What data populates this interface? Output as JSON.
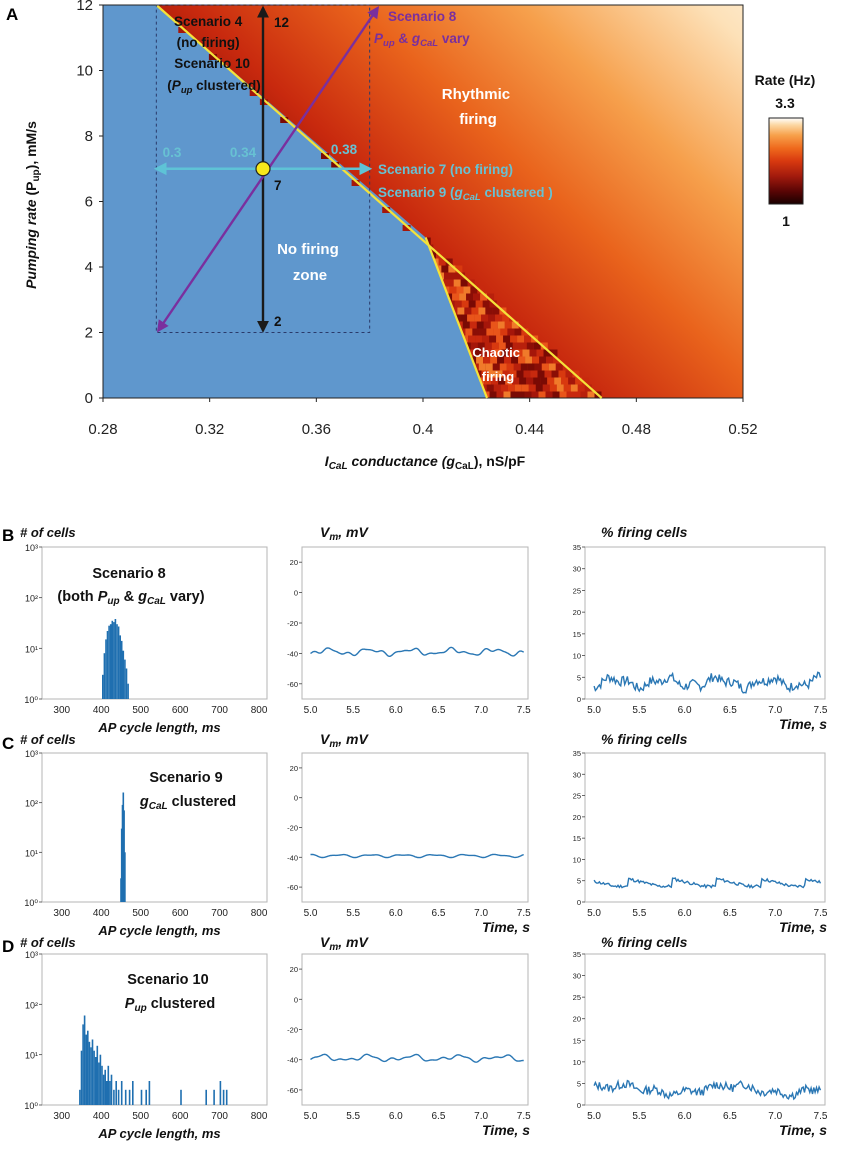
{
  "colors": {
    "no_firing_blue": "#5f97cd",
    "arrow_black": "#1a1a1a",
    "arrow_purple": "#7a2f9e",
    "arrow_cyan": "#5ec3d6",
    "label_purple": "#7a2f9e",
    "label_cyan": "#67c1d3",
    "boundary_yellow": "#f4e23a",
    "trace_blue": "#2a77b4",
    "hist_blue": "#1f6fb0",
    "rate_colormap": [
      "#1a0000",
      "#5a0505",
      "#a11a0d",
      "#d8390f",
      "#ef6a1d",
      "#f7a14b",
      "#fcd8a4",
      "#ffffff"
    ]
  },
  "panel_a": {
    "letter": "A",
    "xlabel": "I_CaL conductance (g_CaL), nS/pF",
    "ylabel": "Pumping rate (P_up), mM/s",
    "xticks": [
      "0.28",
      "0.32",
      "0.36",
      "0.4",
      "0.44",
      "0.48",
      "0.52"
    ],
    "yticks": [
      "0",
      "2",
      "4",
      "6",
      "8",
      "10",
      "12"
    ],
    "colorbar": {
      "title": "Rate (Hz)",
      "max_label": "3.3",
      "min_label": "1"
    },
    "region_rhythmic": [
      "Rhythmic",
      "firing"
    ],
    "region_no_firing": [
      "No firing",
      "zone"
    ],
    "region_chaotic": [
      "Chaotic",
      "firing"
    ],
    "scenario_4_10": [
      "Scenario 4",
      "(no firing)",
      "Scenario 10",
      "(Pup clustered)"
    ],
    "scenario_8": [
      "Scenario 8",
      "Pup & gCaL vary"
    ],
    "scenario_7_9": [
      "Scenario 7 (no firing)",
      "Scenario 9 (gCaL clustered )"
    ],
    "cyan_values": [
      "0.3",
      "0.34",
      "0.38"
    ],
    "black_values": [
      "12",
      "7",
      "2"
    ]
  },
  "chart_data": [
    {
      "type": "heatmap",
      "id": "A",
      "title": "",
      "xlabel": "I_CaL conductance (g_CaL), nS/pF",
      "ylabel": "Pumping rate (P_up), mM/s",
      "xlim": [
        0.28,
        0.52
      ],
      "ylim": [
        0,
        12
      ],
      "colorbar": {
        "label": "Rate (Hz)",
        "range": [
          1,
          3.3
        ]
      },
      "boundary": {
        "upper_line": [
          [
            0.3,
            12
          ],
          [
            0.467,
            0
          ]
        ],
        "lower_branch": [
          [
            0.401,
            4.9
          ],
          [
            0.424,
            0
          ]
        ]
      },
      "center_point": [
        0.34,
        7
      ],
      "dashed_box": {
        "x": [
          0.3,
          0.38
        ],
        "y": [
          2,
          12
        ]
      }
    },
    {
      "type": "bar",
      "id": "B1",
      "label": "# of cells",
      "xlabel": "AP cycle length, ms",
      "yscale": "log",
      "xlim": [
        250,
        820
      ],
      "ylim": [
        1,
        1000
      ],
      "xticks": [
        "300",
        "400",
        "500",
        "600",
        "700",
        "800"
      ],
      "ytick_labels": [
        "10⁰",
        "10¹",
        "10²",
        "10³"
      ],
      "annotation": [
        "Scenario 8",
        "(both Pup & gCaL vary)"
      ],
      "bins": [
        [
          402,
          3
        ],
        [
          406,
          8
        ],
        [
          410,
          15
        ],
        [
          414,
          22
        ],
        [
          418,
          28
        ],
        [
          422,
          30
        ],
        [
          426,
          35
        ],
        [
          430,
          33
        ],
        [
          434,
          38
        ],
        [
          438,
          30
        ],
        [
          442,
          27
        ],
        [
          446,
          18
        ],
        [
          450,
          14
        ],
        [
          454,
          9
        ],
        [
          458,
          6
        ],
        [
          462,
          4
        ],
        [
          466,
          2
        ]
      ]
    },
    {
      "type": "line",
      "id": "B2",
      "label": "Vm, mV",
      "xlabel": "",
      "xlim": [
        4.9,
        7.55
      ],
      "ylim": [
        -70,
        30
      ],
      "xticks": [
        "5.0",
        "5.5",
        "6.0",
        "6.5",
        "7.0",
        "7.5"
      ],
      "yticks": [
        "20",
        "0",
        "-20",
        "-40",
        "-60"
      ],
      "shape": {
        "base": -39,
        "waves": [
          [
            1.6,
            13
          ],
          [
            0.9,
            31
          ],
          [
            0.5,
            47
          ]
        ],
        "seed": 3
      }
    },
    {
      "type": "line",
      "id": "B3",
      "label": "% firing cells",
      "xlabel": "Time, s",
      "xlim": [
        4.9,
        7.55
      ],
      "ylim": [
        0,
        35
      ],
      "xticks": [
        "5.0",
        "5.5",
        "6.0",
        "6.5",
        "7.0",
        "7.5"
      ],
      "yticks": [
        "0",
        "5",
        "10",
        "15",
        "20",
        "25",
        "30",
        "35"
      ],
      "shape": {
        "base": 3.8,
        "waves": [
          [
            0.9,
            11
          ],
          [
            0.5,
            27
          ]
        ],
        "noise": 1.1,
        "seed": 7
      }
    },
    {
      "type": "bar",
      "id": "C1",
      "label": "# of cells",
      "xlabel": "AP cycle length, ms",
      "yscale": "log",
      "xlim": [
        250,
        820
      ],
      "ylim": [
        1,
        1000
      ],
      "xticks": [
        "300",
        "400",
        "500",
        "600",
        "700",
        "800"
      ],
      "ytick_labels": [
        "10⁰",
        "10¹",
        "10²",
        "10³"
      ],
      "annotation": [
        "Scenario 9",
        "gCaL clustered"
      ],
      "bins": [
        [
          448,
          3
        ],
        [
          450,
          30
        ],
        [
          452,
          90
        ],
        [
          454,
          160
        ],
        [
          456,
          70
        ],
        [
          458,
          10
        ]
      ]
    },
    {
      "type": "line",
      "id": "C2",
      "label": "Vm, mV",
      "xlabel": "Time, s",
      "xlim": [
        4.9,
        7.55
      ],
      "ylim": [
        -70,
        30
      ],
      "xticks": [
        "5.0",
        "5.5",
        "6.0",
        "6.5",
        "7.0",
        "7.5"
      ],
      "yticks": [
        "20",
        "0",
        "-20",
        "-40",
        "-60"
      ],
      "shape": {
        "base": -39,
        "waves": [
          [
            0.8,
            17
          ],
          [
            0.4,
            33
          ]
        ],
        "seed": 5
      }
    },
    {
      "type": "line",
      "id": "C3",
      "label": "% firing cells",
      "xlabel": "Time, s",
      "xlim": [
        4.9,
        7.55
      ],
      "ylim": [
        0,
        35
      ],
      "xticks": [
        "5.0",
        "5.5",
        "6.0",
        "6.5",
        "7.0",
        "7.5"
      ],
      "yticks": [
        "0",
        "5",
        "10",
        "15",
        "20",
        "25",
        "30",
        "35"
      ],
      "shape": {
        "base": 4.3,
        "sawtooth": {
          "period": 0.49,
          "amp": 1.8
        },
        "noise": 0.35,
        "seed": 11
      }
    },
    {
      "type": "bar",
      "id": "D1",
      "label": "# of cells",
      "xlabel": "AP cycle length, ms",
      "yscale": "log",
      "xlim": [
        250,
        820
      ],
      "ylim": [
        1,
        1000
      ],
      "xticks": [
        "300",
        "400",
        "500",
        "600",
        "700",
        "800"
      ],
      "ytick_labels": [
        "10⁰",
        "10¹",
        "10²",
        "10³"
      ],
      "annotation": [
        "Scenario 10",
        "Pup clustered"
      ],
      "bins": [
        [
          344,
          2
        ],
        [
          348,
          12
        ],
        [
          352,
          40
        ],
        [
          356,
          60
        ],
        [
          360,
          25
        ],
        [
          364,
          30
        ],
        [
          368,
          18
        ],
        [
          372,
          14
        ],
        [
          376,
          20
        ],
        [
          380,
          12
        ],
        [
          384,
          9
        ],
        [
          388,
          15
        ],
        [
          392,
          7
        ],
        [
          396,
          10
        ],
        [
          400,
          6
        ],
        [
          404,
          4
        ],
        [
          408,
          5
        ],
        [
          412,
          3
        ],
        [
          416,
          6
        ],
        [
          420,
          3
        ],
        [
          424,
          4
        ],
        [
          430,
          2
        ],
        [
          436,
          3
        ],
        [
          442,
          2
        ],
        [
          450,
          3
        ],
        [
          460,
          2
        ],
        [
          470,
          2
        ],
        [
          478,
          3
        ],
        [
          500,
          2
        ],
        [
          512,
          2
        ],
        [
          520,
          3
        ],
        [
          600,
          2
        ],
        [
          664,
          2
        ],
        [
          684,
          2
        ],
        [
          700,
          3
        ],
        [
          708,
          2
        ],
        [
          716,
          2
        ]
      ]
    },
    {
      "type": "line",
      "id": "D2",
      "label": "Vm, mV",
      "xlabel": "Time, s",
      "xlim": [
        4.9,
        7.55
      ],
      "ylim": [
        -70,
        30
      ],
      "xticks": [
        "5.0",
        "5.5",
        "6.0",
        "6.5",
        "7.0",
        "7.5"
      ],
      "yticks": [
        "20",
        "0",
        "-20",
        "-40",
        "-60"
      ],
      "shape": {
        "base": -39,
        "waves": [
          [
            1.4,
            12
          ],
          [
            0.9,
            23
          ],
          [
            0.6,
            41
          ]
        ],
        "seed": 9
      }
    },
    {
      "type": "line",
      "id": "D3",
      "label": "% firing cells",
      "xlabel": "Time, s",
      "xlim": [
        4.9,
        7.55
      ],
      "ylim": [
        0,
        35
      ],
      "xticks": [
        "5.0",
        "5.5",
        "6.0",
        "6.5",
        "7.0",
        "7.5"
      ],
      "yticks": [
        "0",
        "5",
        "10",
        "15",
        "20",
        "25",
        "30",
        "35"
      ],
      "shape": {
        "base": 3.6,
        "waves": [
          [
            0.9,
            5
          ],
          [
            0.5,
            19
          ]
        ],
        "noise": 1.0,
        "seed": 13
      }
    }
  ],
  "panel_letters": [
    "B",
    "C",
    "D"
  ]
}
